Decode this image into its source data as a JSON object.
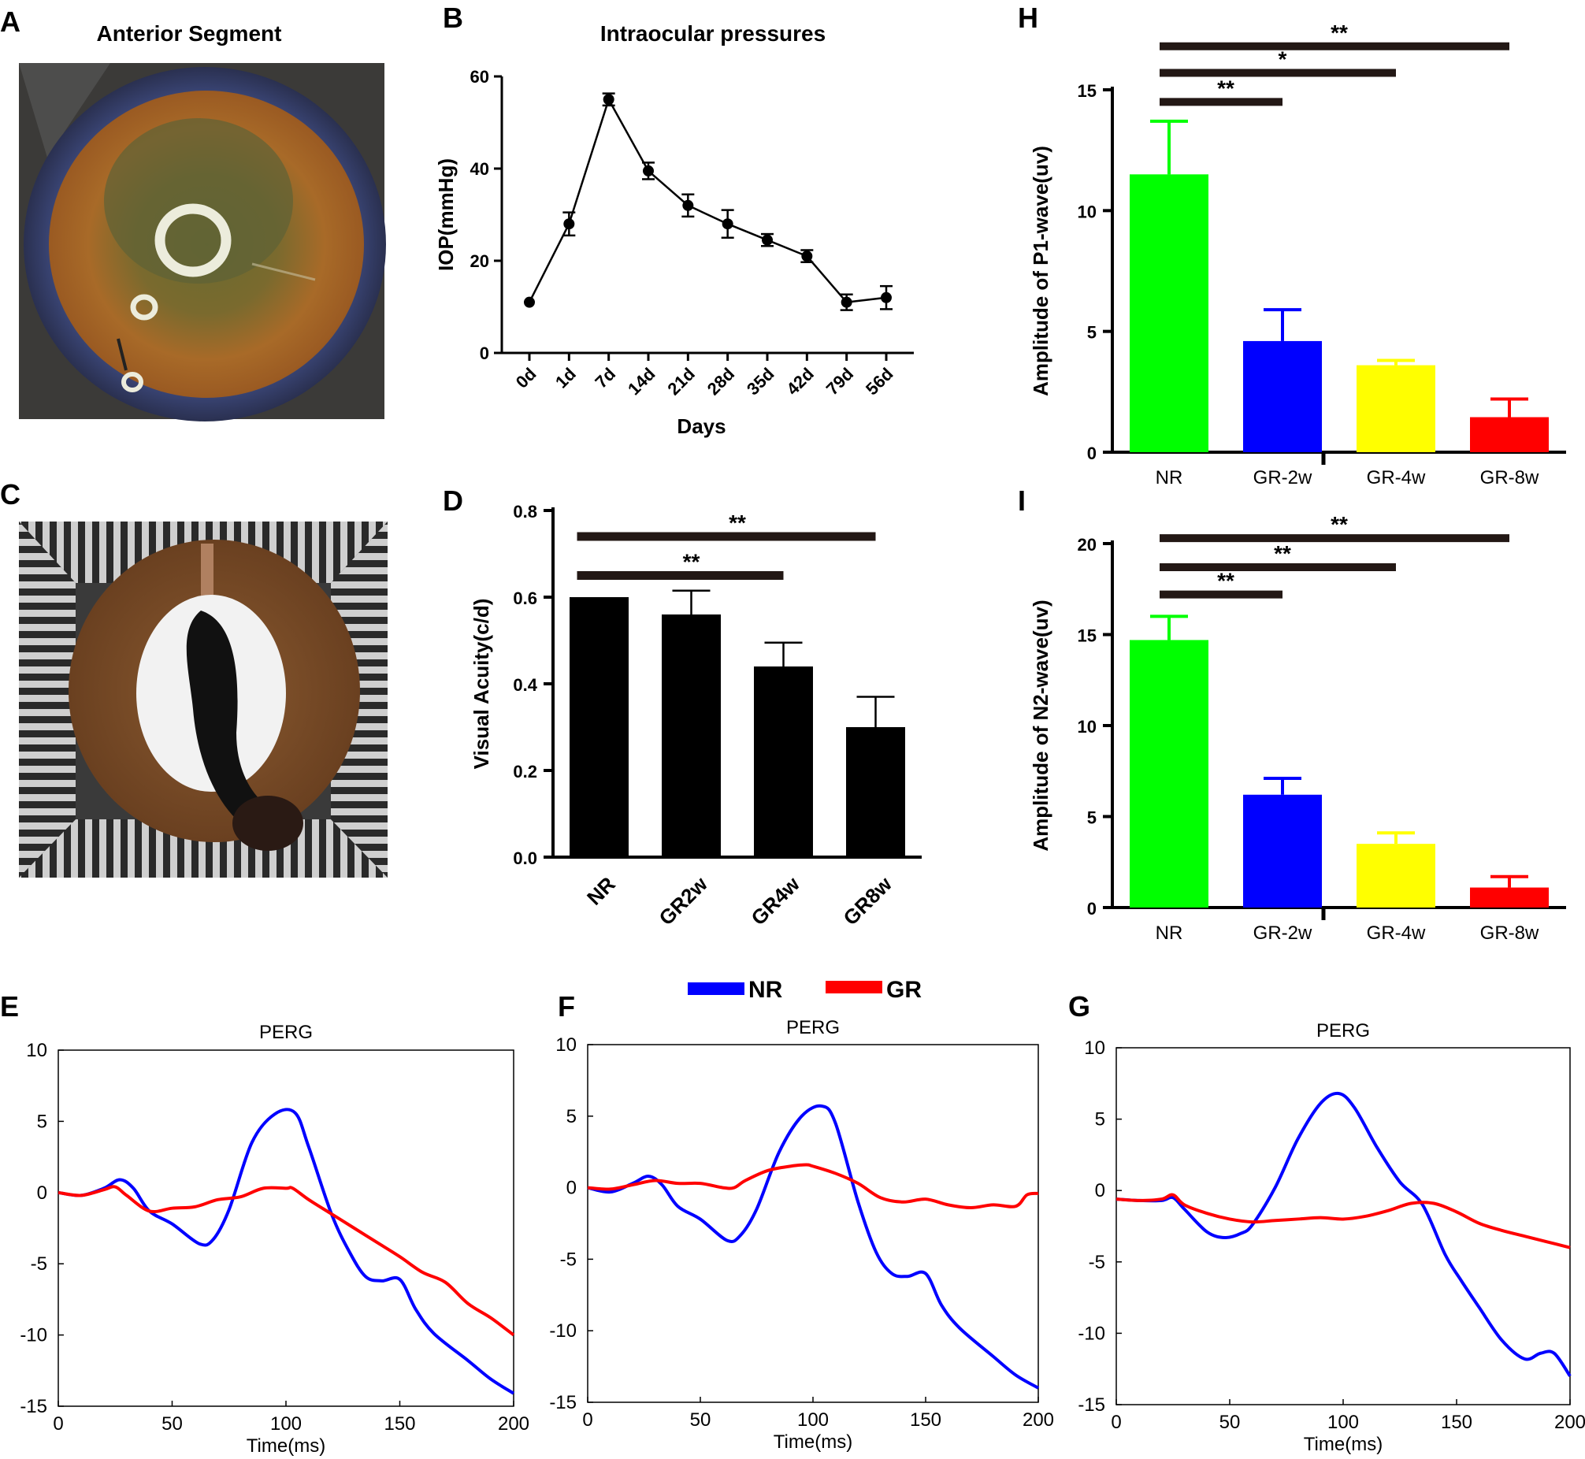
{
  "panels": {
    "A": {
      "letter": "A",
      "title": "Anterior Segment"
    },
    "C": {
      "letter": "C"
    }
  },
  "chart_data": [
    {
      "id": "B",
      "letter": "B",
      "type": "line",
      "title": "Intraocular pressures",
      "xlabel": "Days",
      "ylabel": "IOP(mmHg)",
      "categories": [
        "0d",
        "1d",
        "7d",
        "14d",
        "21d",
        "28d",
        "35d",
        "42d",
        "79d",
        "56d"
      ],
      "values": [
        11,
        28,
        55,
        39.5,
        32,
        28,
        24.5,
        21,
        11,
        12
      ],
      "errors": [
        0,
        2.5,
        1.3,
        1.8,
        2.4,
        3,
        1.3,
        1.3,
        1.7,
        2.5
      ],
      "ylim": [
        0,
        60
      ],
      "yticks": [
        0,
        20,
        40,
        60
      ],
      "color": "#000000"
    },
    {
      "id": "D",
      "letter": "D",
      "type": "bar",
      "xlabel": "",
      "ylabel": "Visual Acuity(c/d)",
      "categories": [
        "NR",
        "GR2w",
        "GR4w",
        "GR8w"
      ],
      "values": [
        0.6,
        0.56,
        0.44,
        0.3
      ],
      "errors": [
        0,
        0.055,
        0.055,
        0.07
      ],
      "colors": [
        "#000000",
        "#000000",
        "#000000",
        "#000000"
      ],
      "ylim": [
        0,
        0.8
      ],
      "yticks": [
        "0.0",
        "0.2",
        "0.4",
        "0.6",
        "0.8"
      ],
      "significance": [
        {
          "from": 0,
          "to": 2,
          "label": "**",
          "level": 0.65
        },
        {
          "from": 0,
          "to": 3,
          "label": "**",
          "level": 0.74
        }
      ]
    },
    {
      "id": "H",
      "letter": "H",
      "type": "bar",
      "xlabel": "",
      "ylabel": "Amplitude of P1-wave(uv)",
      "categories": [
        "NR",
        "GR-2w",
        "GR-4w",
        "GR-8w"
      ],
      "values": [
        11.5,
        4.6,
        3.6,
        1.45
      ],
      "errors": [
        2.2,
        1.3,
        0.2,
        0.75
      ],
      "colors": [
        "#00ff00",
        "#0000ff",
        "#ffff00",
        "#ff0000"
      ],
      "ylim": [
        0,
        15
      ],
      "yticks": [
        0,
        5,
        10,
        15
      ],
      "significance": [
        {
          "from": 0,
          "to": 1,
          "label": "**",
          "level": 14.5
        },
        {
          "from": 0,
          "to": 2,
          "label": "*",
          "level": 15.7
        },
        {
          "from": 0,
          "to": 3,
          "label": "**",
          "level": 16.8
        }
      ]
    },
    {
      "id": "I",
      "letter": "I",
      "type": "bar",
      "xlabel": "",
      "ylabel": "Amplitude of N2-wave(uv)",
      "categories": [
        "NR",
        "GR-2w",
        "GR-4w",
        "GR-8w"
      ],
      "values": [
        14.7,
        6.2,
        3.5,
        1.1
      ],
      "errors": [
        1.3,
        0.9,
        0.6,
        0.6
      ],
      "colors": [
        "#00ff00",
        "#0000ff",
        "#ffff00",
        "#ff0000"
      ],
      "ylim": [
        0,
        20
      ],
      "yticks": [
        0,
        5,
        10,
        15,
        20
      ],
      "significance": [
        {
          "from": 0,
          "to": 1,
          "label": "**",
          "level": 17.2
        },
        {
          "from": 0,
          "to": 2,
          "label": "**",
          "level": 18.7
        },
        {
          "from": 0,
          "to": 3,
          "label": "**",
          "level": 20.3
        }
      ]
    },
    {
      "id": "E",
      "letter": "E",
      "type": "line",
      "title": "PERG",
      "xlabel": "Time(ms)",
      "ylabel": "",
      "xlim": [
        0,
        200
      ],
      "ylim": [
        -15,
        10
      ],
      "xticks": [
        0,
        50,
        100,
        150,
        200
      ],
      "yticks": [
        -15,
        -10,
        -5,
        0,
        5,
        10
      ],
      "series": [
        {
          "name": "NR",
          "color": "#0000ff",
          "x": [
            0,
            10,
            20,
            27,
            33,
            40,
            50,
            62,
            68,
            75,
            85,
            95,
            104,
            110,
            120,
            128,
            135,
            142,
            150,
            157,
            165,
            180,
            190,
            200
          ],
          "y": [
            0,
            -0.2,
            0.3,
            0.9,
            0.3,
            -1.3,
            -2.2,
            -3.6,
            -3.3,
            -1.2,
            3.5,
            5.5,
            5.6,
            3.2,
            -1.5,
            -4.2,
            -5.9,
            -6.2,
            -6.1,
            -8.2,
            -9.9,
            -11.8,
            -13.1,
            -14.1
          ]
        },
        {
          "name": "GR",
          "color": "#ff0000",
          "x": [
            0,
            10,
            20,
            25,
            30,
            40,
            50,
            60,
            70,
            80,
            90,
            100,
            103,
            110,
            120,
            130,
            140,
            150,
            160,
            170,
            180,
            190,
            200
          ],
          "y": [
            0,
            -0.2,
            0.2,
            0.4,
            -0.2,
            -1.3,
            -1.1,
            -1.0,
            -0.5,
            -0.3,
            0.3,
            0.3,
            0.3,
            -0.5,
            -1.5,
            -2.5,
            -3.5,
            -4.5,
            -5.6,
            -6.3,
            -7.8,
            -8.8,
            -10.0
          ]
        }
      ]
    },
    {
      "id": "F",
      "letter": "F",
      "type": "line",
      "title": "PERG",
      "xlabel": "Time(ms)",
      "ylabel": "",
      "xlim": [
        0,
        200
      ],
      "ylim": [
        -15,
        10
      ],
      "xticks": [
        0,
        50,
        100,
        150,
        200
      ],
      "yticks": [
        -15,
        -10,
        -5,
        0,
        5,
        10
      ],
      "series": [
        {
          "name": "NR",
          "color": "#0000ff",
          "x": [
            0,
            10,
            20,
            27,
            33,
            40,
            50,
            62,
            68,
            75,
            85,
            95,
            104,
            110,
            120,
            128,
            135,
            142,
            150,
            157,
            165,
            180,
            190,
            200
          ],
          "y": [
            0,
            -0.3,
            0.3,
            0.8,
            0.2,
            -1.3,
            -2.2,
            -3.7,
            -3.3,
            -1.5,
            2.5,
            5.0,
            5.7,
            4.5,
            -1.0,
            -4.5,
            -6.0,
            -6.2,
            -6.0,
            -8.2,
            -9.8,
            -11.8,
            -13.1,
            -14.0
          ]
        },
        {
          "name": "GR",
          "color": "#ff0000",
          "x": [
            0,
            10,
            20,
            30,
            40,
            50,
            60,
            65,
            70,
            80,
            90,
            97,
            100,
            110,
            120,
            130,
            140,
            150,
            160,
            170,
            180,
            190,
            195,
            200
          ],
          "y": [
            0,
            -0.1,
            0.2,
            0.5,
            0.3,
            0.3,
            0,
            0,
            0.5,
            1.2,
            1.5,
            1.6,
            1.5,
            1.0,
            0.3,
            -0.7,
            -1.0,
            -0.8,
            -1.2,
            -1.4,
            -1.2,
            -1.3,
            -0.5,
            -0.4
          ]
        }
      ]
    },
    {
      "id": "G",
      "letter": "G",
      "type": "line",
      "title": "PERG",
      "xlabel": "Time(ms)",
      "ylabel": "",
      "xlim": [
        0,
        200
      ],
      "ylim": [
        -15,
        10
      ],
      "xticks": [
        0,
        50,
        100,
        150,
        200
      ],
      "yticks": [
        -15,
        -10,
        -5,
        0,
        5,
        10
      ],
      "series": [
        {
          "name": "NR",
          "color": "#0000ff",
          "x": [
            0,
            10,
            20,
            25,
            30,
            40,
            48,
            55,
            60,
            70,
            80,
            90,
            98,
            105,
            115,
            125,
            135,
            145,
            152,
            160,
            170,
            180,
            187,
            193,
            200
          ],
          "y": [
            -0.6,
            -0.7,
            -0.7,
            -0.5,
            -1.3,
            -2.9,
            -3.3,
            -3.0,
            -2.4,
            0.2,
            3.6,
            6.1,
            6.8,
            5.8,
            3.0,
            0.6,
            -1.0,
            -4.5,
            -6.3,
            -8.2,
            -10.5,
            -11.8,
            -11.4,
            -11.4,
            -13.0
          ]
        },
        {
          "name": "GR",
          "color": "#ff0000",
          "x": [
            0,
            10,
            20,
            25,
            30,
            40,
            50,
            60,
            70,
            80,
            90,
            100,
            110,
            120,
            130,
            140,
            150,
            160,
            170,
            180,
            190,
            200
          ],
          "y": [
            -0.6,
            -0.7,
            -0.6,
            -0.3,
            -1.0,
            -1.6,
            -2.0,
            -2.2,
            -2.1,
            -2.0,
            -1.9,
            -2.0,
            -1.8,
            -1.4,
            -0.9,
            -0.9,
            -1.5,
            -2.3,
            -2.8,
            -3.2,
            -3.6,
            -4.0
          ]
        }
      ]
    }
  ],
  "legend": {
    "items": [
      {
        "label": "NR",
        "color": "#0000ff"
      },
      {
        "label": "GR",
        "color": "#ff0000"
      }
    ]
  }
}
